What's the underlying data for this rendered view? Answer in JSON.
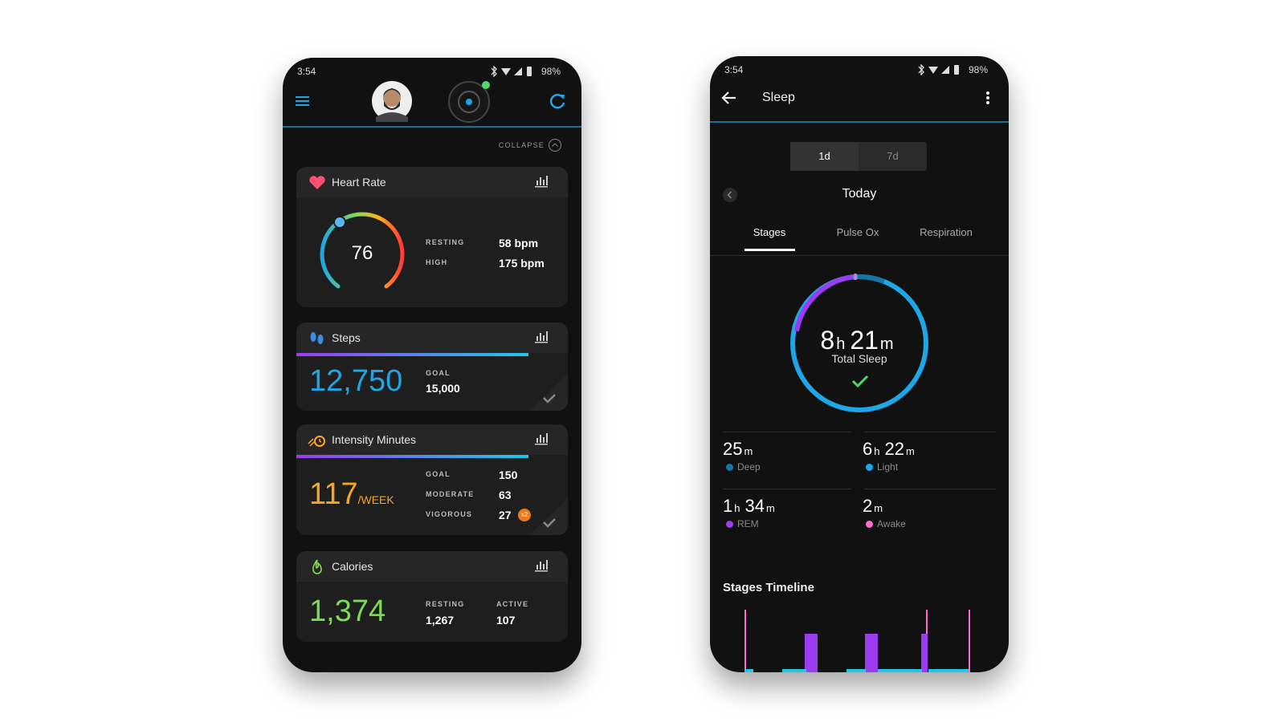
{
  "dashboard": {
    "status_bar": {
      "time": "3:54",
      "battery": "98%"
    },
    "collapse": "COLLAPSE",
    "heart_rate": {
      "title": "Heart Rate",
      "value": "76",
      "resting_label": "RESTING",
      "resting": "58 bpm",
      "high_label": "HIGH",
      "high": "175 bpm"
    },
    "steps": {
      "title": "Steps",
      "value": "12,750",
      "goal_label": "GOAL",
      "goal": "15,000"
    },
    "intensity": {
      "title": "Intensity Minutes",
      "value": "117",
      "unit": "/WEEK",
      "goal_label": "GOAL",
      "goal": "150",
      "moderate_label": "MODERATE",
      "moderate": "63",
      "vigorous_label": "VIGOROUS",
      "vigorous": "27",
      "badge": "x2"
    },
    "calories": {
      "title": "Calories",
      "value": "1,374",
      "resting_label": "RESTING",
      "resting": "1,267",
      "active_label": "ACTIVE",
      "active": "107"
    }
  },
  "sleep": {
    "status_bar": {
      "time": "3:54",
      "battery": "98%"
    },
    "title": "Sleep",
    "ranges": [
      "1d",
      "7d"
    ],
    "date": "Today",
    "tabs": [
      "Stages",
      "Pulse Ox",
      "Respiration"
    ],
    "total": {
      "parts": [
        "8",
        "h",
        "21",
        "m"
      ],
      "label": "Total Sleep"
    },
    "stats": [
      {
        "parts": [
          "25",
          "m"
        ],
        "label": "Deep"
      },
      {
        "parts": [
          "6",
          "h",
          "22",
          "m"
        ],
        "label": "Light"
      },
      {
        "parts": [
          "1",
          "h",
          "34",
          "m"
        ],
        "label": "REM"
      },
      {
        "parts": [
          "2",
          "m"
        ],
        "label": "Awake"
      }
    ],
    "timeline_title": "Stages Timeline"
  }
}
